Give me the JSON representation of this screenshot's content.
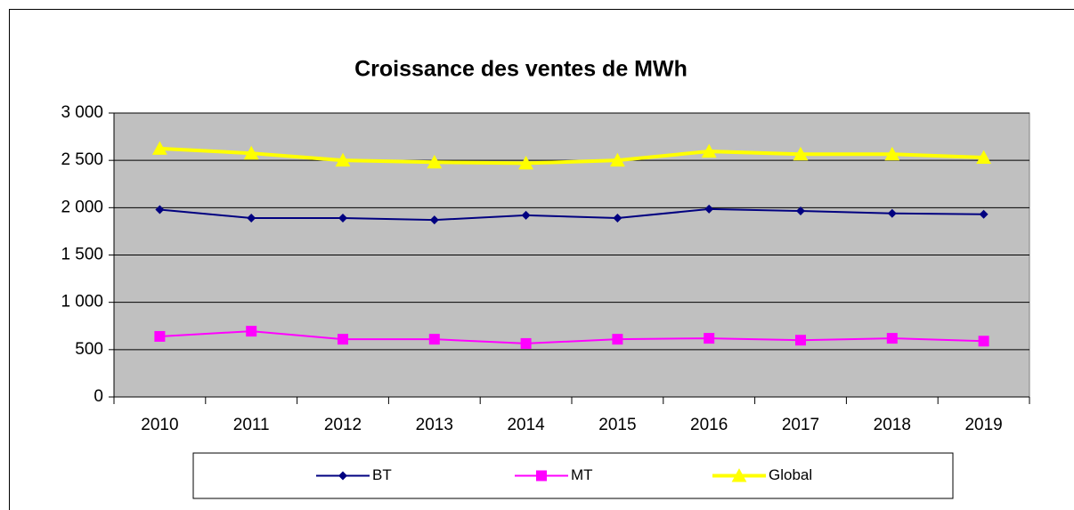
{
  "chart_data": {
    "type": "line",
    "title": "Croissance des ventes de MWh",
    "categories": [
      "2010",
      "2011",
      "2012",
      "2013",
      "2014",
      "2015",
      "2016",
      "2017",
      "2018",
      "2019"
    ],
    "series": [
      {
        "name": "BT",
        "color": "#000080",
        "marker": "diamond",
        "values": [
          1980,
          1890,
          1890,
          1870,
          1920,
          1890,
          1985,
          1965,
          1940,
          1930
        ]
      },
      {
        "name": "MT",
        "color": "#ff00ff",
        "marker": "square",
        "values": [
          640,
          695,
          610,
          610,
          565,
          610,
          620,
          600,
          620,
          590
        ]
      },
      {
        "name": "Global",
        "color": "#ffff00",
        "marker": "triangle",
        "values": [
          2625,
          2575,
          2500,
          2480,
          2470,
          2500,
          2595,
          2565,
          2565,
          2530
        ]
      }
    ],
    "ylim": [
      0,
      3000
    ],
    "yticks": [
      0,
      500,
      {
        "value": 1000,
        "label": "1 000"
      },
      {
        "value": 1500,
        "label": "1 500"
      },
      {
        "value": 2000,
        "label": "2 000"
      },
      {
        "value": 2500,
        "label": "2 500"
      },
      {
        "value": 3000,
        "label": "3 000"
      }
    ],
    "grid": true,
    "legend": "bottom"
  }
}
